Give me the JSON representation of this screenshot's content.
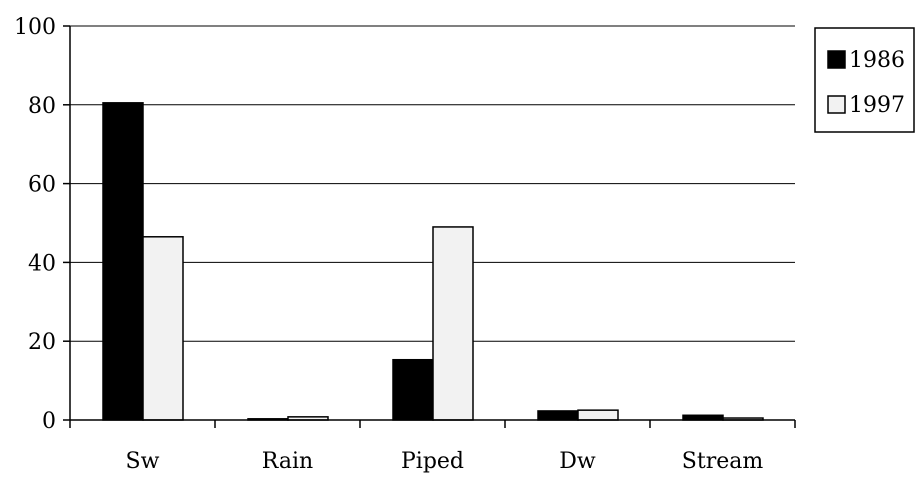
{
  "chart_data": {
    "type": "bar",
    "title": "",
    "xlabel": "",
    "ylabel": "",
    "categories": [
      "Sw",
      "Rain",
      "Piped",
      "Dw",
      "Stream"
    ],
    "series": [
      {
        "name": "1986",
        "values": [
          80.5,
          0.3,
          15.3,
          2.3,
          1.2
        ],
        "color": "#000000"
      },
      {
        "name": "1997",
        "values": [
          46.5,
          0.8,
          49.0,
          2.5,
          0.5
        ],
        "color": "#f2f2f2"
      }
    ],
    "ylim": [
      0,
      100
    ],
    "yticks": [
      "0",
      "20",
      "40",
      "60",
      "80",
      "100"
    ],
    "grid": true,
    "legend": "right"
  }
}
